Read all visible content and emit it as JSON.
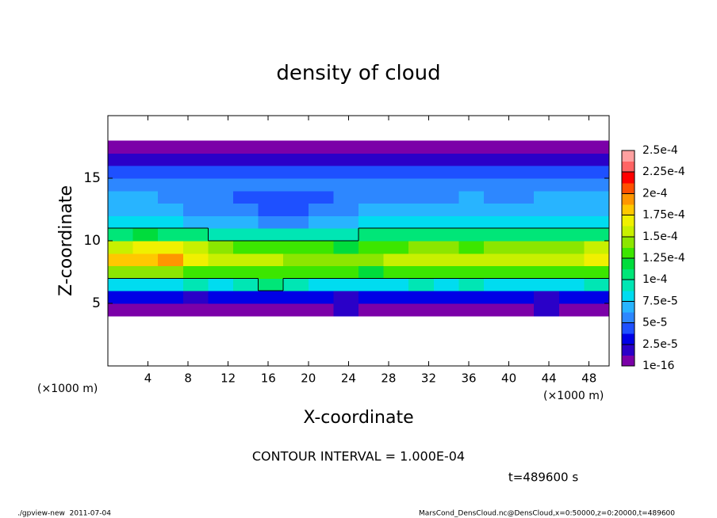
{
  "chart_data": {
    "type": "contour",
    "title": "density of cloud",
    "xlabel": "X-coordinate",
    "ylabel": "Z-coordinate",
    "x_unit_label": "(×1000 m)",
    "xlim": [
      0,
      50
    ],
    "ylim": [
      0,
      20
    ],
    "xticks": [
      4,
      8,
      12,
      16,
      20,
      24,
      28,
      32,
      36,
      40,
      44,
      48
    ],
    "yticks": [
      5,
      10,
      15
    ],
    "x": [
      1.25,
      3.75,
      6.25,
      8.75,
      11.25,
      13.75,
      16.25,
      18.75,
      21.25,
      23.75,
      26.25,
      28.75,
      31.25,
      33.75,
      36.25,
      38.75,
      41.25,
      43.75,
      46.25,
      48.75
    ],
    "z": [
      4.5,
      5.5,
      6.5,
      7.5,
      8.5,
      9.5,
      10.5,
      11.5,
      12.5,
      13.5,
      14.5,
      15.5,
      16.5,
      17.5
    ],
    "values": [
      [
        1e-05,
        1e-05,
        1e-05,
        1e-05,
        1e-05,
        1e-05,
        1e-05,
        1e-05,
        1e-05,
        1.5e-05,
        1e-05,
        1e-05,
        1e-05,
        1e-05,
        1e-05,
        1e-05,
        1e-05,
        1.5e-05,
        1e-05,
        1e-05
      ],
      [
        3e-05,
        2.5e-05,
        2.5e-05,
        2e-05,
        3e-05,
        3e-05,
        3e-05,
        2.5e-05,
        3e-05,
        2e-05,
        2.5e-05,
        3e-05,
        3e-05,
        3e-05,
        3e-05,
        3e-05,
        3e-05,
        2e-05,
        2.5e-05,
        3e-05
      ],
      [
        8e-05,
        8.5e-05,
        8e-05,
        9e-05,
        8.5e-05,
        9e-05,
        0.000105,
        9e-05,
        8.5e-05,
        8e-05,
        8.5e-05,
        8e-05,
        9e-05,
        8.5e-05,
        9.5e-05,
        8.5e-05,
        8e-05,
        8e-05,
        8.5e-05,
        9e-05
      ],
      [
        0.00014,
        0.000145,
        0.00014,
        0.000135,
        0.00013,
        0.00013,
        0.00013,
        0.000125,
        0.00013,
        0.000125,
        0.00012,
        0.000125,
        0.00013,
        0.00013,
        0.000125,
        0.00013,
        0.00013,
        0.000135,
        0.00013,
        0.00013
      ],
      [
        0.000175,
        0.00018,
        0.00019,
        0.00017,
        0.00016,
        0.000155,
        0.00015,
        0.000145,
        0.000145,
        0.00014,
        0.000145,
        0.00015,
        0.000155,
        0.00015,
        0.000155,
        0.00016,
        0.00016,
        0.000155,
        0.00016,
        0.000165
      ],
      [
        0.00016,
        0.00017,
        0.000165,
        0.00015,
        0.00014,
        0.000135,
        0.00013,
        0.000125,
        0.00013,
        0.00012,
        0.000125,
        0.000135,
        0.00014,
        0.00014,
        0.000135,
        0.00014,
        0.000145,
        0.00014,
        0.000145,
        0.00015
      ],
      [
        0.00011,
        0.00012,
        0.000105,
        0.0001,
        9.5e-05,
        9e-05,
        9.5e-05,
        9e-05,
        9.5e-05,
        9e-05,
        0.0001,
        0.000105,
        0.00011,
        0.000105,
        0.0001,
        0.000105,
        0.000105,
        0.0001,
        0.000105,
        0.00011
      ],
      [
        8e-05,
        8.5e-05,
        7.5e-05,
        7e-05,
        6.5e-05,
        6.5e-05,
        6e-05,
        6e-05,
        6.5e-05,
        7e-05,
        7.5e-05,
        8e-05,
        8e-05,
        7.5e-05,
        7.5e-05,
        7.5e-05,
        7.5e-05,
        8e-05,
        8e-05,
        8e-05
      ],
      [
        7e-05,
        7e-05,
        6.5e-05,
        6e-05,
        5.5e-05,
        5e-05,
        4.5e-05,
        4.5e-05,
        5e-05,
        5.5e-05,
        6.5e-05,
        7e-05,
        7e-05,
        6.5e-05,
        6.5e-05,
        6.5e-05,
        6.5e-05,
        7e-05,
        7e-05,
        7e-05
      ],
      [
        6.5e-05,
        6.5e-05,
        6e-05,
        5.5e-05,
        5e-05,
        4.5e-05,
        4e-05,
        4e-05,
        4.5e-05,
        5.5e-05,
        6e-05,
        6e-05,
        6e-05,
        6e-05,
        6.5e-05,
        6e-05,
        6e-05,
        6.5e-05,
        6.5e-05,
        6.5e-05
      ],
      [
        6e-05,
        6e-05,
        5.5e-05,
        5.5e-05,
        5.5e-05,
        5e-05,
        5e-05,
        5e-05,
        5.5e-05,
        5.5e-05,
        6e-05,
        6e-05,
        6e-05,
        6e-05,
        6e-05,
        6e-05,
        6e-05,
        6e-05,
        6e-05,
        6e-05
      ],
      [
        4.5e-05,
        4.5e-05,
        4.5e-05,
        4.5e-05,
        4.5e-05,
        4.5e-05,
        4.5e-05,
        4.5e-05,
        4.5e-05,
        4.5e-05,
        4.5e-05,
        4.5e-05,
        4.5e-05,
        4.5e-05,
        4.5e-05,
        4.5e-05,
        4.5e-05,
        4.5e-05,
        4.5e-05,
        4.5e-05
      ],
      [
        2e-05,
        2e-05,
        2e-05,
        2e-05,
        2e-05,
        2e-05,
        2e-05,
        2e-05,
        2e-05,
        2e-05,
        2e-05,
        2e-05,
        2e-05,
        2e-05,
        2e-05,
        2e-05,
        2e-05,
        2e-05,
        2e-05,
        2e-05
      ],
      [
        1e-05,
        1e-05,
        1e-05,
        1e-05,
        1e-05,
        1e-05,
        1e-05,
        1e-05,
        1e-05,
        1e-05,
        1e-05,
        1e-05,
        1e-05,
        1e-05,
        1e-05,
        1e-05,
        1e-05,
        1e-05,
        1e-05,
        1e-05
      ]
    ],
    "levels": [
      {
        "value": 1e-16,
        "label": "1e-16"
      },
      {
        "value": 2.5e-05,
        "label": "2.5e-5"
      },
      {
        "value": 5e-05,
        "label": "5e-5"
      },
      {
        "value": 7.5e-05,
        "label": "7.5e-5"
      },
      {
        "value": 0.0001,
        "label": "1e-4"
      },
      {
        "value": 0.000125,
        "label": "1.25e-4"
      },
      {
        "value": 0.00015,
        "label": "1.5e-4"
      },
      {
        "value": 0.000175,
        "label": "1.75e-4"
      },
      {
        "value": 0.0002,
        "label": "2e-4"
      },
      {
        "value": 0.000225,
        "label": "2.25e-4"
      },
      {
        "value": 0.00025,
        "label": "2.5e-4"
      }
    ],
    "colors": [
      "#7b00a8",
      "#2a00c8",
      "#0000e6",
      "#1e50ff",
      "#2d87ff",
      "#28b4ff",
      "#00dcf0",
      "#00e6b4",
      "#00e678",
      "#00dc3c",
      "#3ce600",
      "#8ce600",
      "#c8f000",
      "#f0f000",
      "#ffc800",
      "#ff9600",
      "#ff5000",
      "#ff0000",
      "#ff6464",
      "#ffa0a0"
    ],
    "contour_interval": 0.0001,
    "contour_interval_label": "CONTOUR INTERVAL = 1.000E-04",
    "time_label": "t=489600 s",
    "footer_left": "./gpview-new  2011-07-04",
    "footer_right": "MarsCond_DensCloud.nc@DensCloud,x=0:50000,z=0:20000,t=489600"
  }
}
